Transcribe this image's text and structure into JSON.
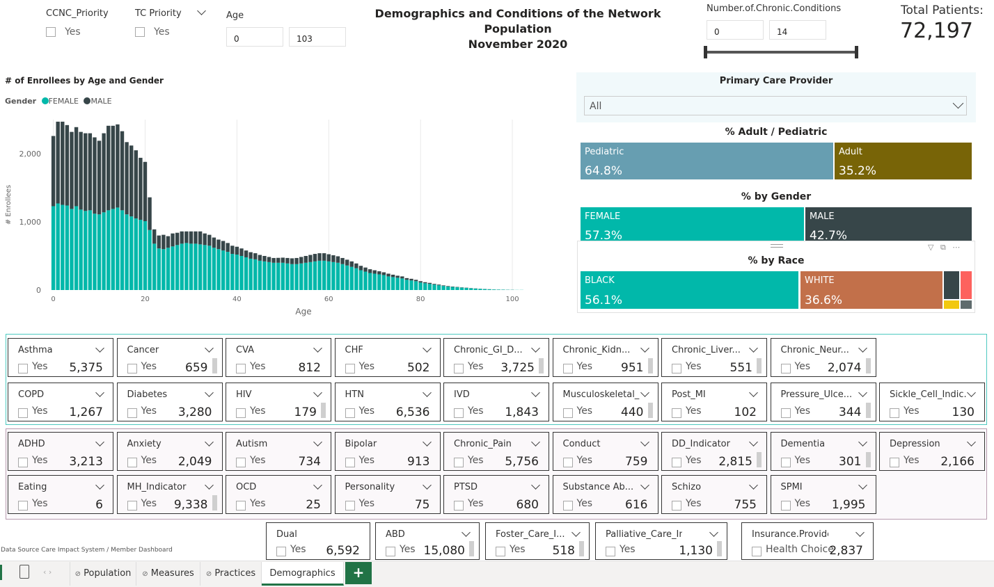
{
  "header": {
    "title_line1": "Demographics and Conditions of the Network Population",
    "title_line2": "November 2020",
    "total_label": "Total Patients:",
    "total_value": "72,197"
  },
  "filters": {
    "ccnc": {
      "label": "CCNC_Priority",
      "opt": "Yes"
    },
    "tc": {
      "label": "TC Priority",
      "opt": "Yes"
    },
    "age": {
      "label": "Age",
      "min": "0",
      "max": "103"
    },
    "chronic": {
      "label": "Number.of.Chronic.Conditions",
      "min": "0",
      "max": "14"
    }
  },
  "chart_data": {
    "type": "bar",
    "stacked": true,
    "title": "# of Enrollees by Age and Gender",
    "legend_title": "Gender",
    "xlabel": "Age",
    "ylabel": "# Enrollees",
    "xlim": [
      -1,
      110
    ],
    "ylim": [
      0,
      2500
    ],
    "xticks": [
      "0",
      "20",
      "40",
      "60",
      "80",
      "100"
    ],
    "yticks": [
      "0",
      "1,000",
      "2,000"
    ],
    "series": [
      {
        "name": "FEMALE",
        "color": "#01B8AA",
        "values": [
          1230,
          1270,
          1250,
          1240,
          1190,
          1230,
          1180,
          1160,
          1170,
          1120,
          1110,
          1140,
          1170,
          1190,
          1210,
          1170,
          1110,
          1080,
          1050,
          1030,
          1010,
          880,
          680,
          610,
          600,
          620,
          640,
          660,
          680,
          690,
          680,
          680,
          670,
          660,
          650,
          620,
          600,
          580,
          560,
          530,
          520,
          500,
          480,
          460,
          450,
          430,
          420,
          410,
          400,
          400,
          400,
          390,
          380,
          380,
          390,
          400,
          410,
          420,
          430,
          430,
          420,
          410,
          400,
          380,
          360,
          340,
          320,
          290,
          270,
          250,
          240,
          230,
          220,
          200,
          190,
          180,
          170,
          150,
          140,
          130,
          110,
          100,
          90,
          80,
          70,
          60,
          50,
          45,
          40,
          35,
          30,
          25,
          20,
          17,
          14,
          10,
          8,
          6,
          5,
          4,
          3,
          2,
          2
        ]
      },
      {
        "name": "MALE",
        "color": "#374649",
        "values": [
          1030,
          1200,
          1220,
          1180,
          1130,
          1160,
          1140,
          1140,
          1130,
          1120,
          1080,
          1160,
          1240,
          1220,
          1220,
          1160,
          1060,
          1040,
          1000,
          910,
          870,
          480,
          210,
          190,
          210,
          170,
          190,
          180,
          180,
          170,
          180,
          180,
          190,
          170,
          160,
          150,
          140,
          140,
          130,
          120,
          115,
          110,
          100,
          95,
          90,
          85,
          80,
          75,
          70,
          72,
          75,
          80,
          85,
          90,
          95,
          100,
          105,
          110,
          110,
          110,
          105,
          100,
          95,
          90,
          85,
          80,
          70,
          65,
          60,
          55,
          50,
          45,
          40,
          40,
          35,
          30,
          30,
          25,
          25,
          20,
          20,
          15,
          15,
          10,
          10,
          8,
          8,
          6,
          5,
          4,
          4,
          3,
          3,
          2,
          2,
          2,
          1,
          1,
          1,
          1,
          1,
          0,
          0
        ]
      }
    ]
  },
  "pcp": {
    "label": "Primary Care Provider",
    "value": "All"
  },
  "adult_ped": {
    "title": "% Adult / Pediatric",
    "segs": [
      {
        "name": "Pediatric",
        "value": "64.8%",
        "color": "#679EB1"
      },
      {
        "name": "Adult",
        "value": "35.2%",
        "color": "#786407"
      }
    ]
  },
  "gender": {
    "title": "% by Gender",
    "segs": [
      {
        "name": "FEMALE",
        "value": "57.3%",
        "color": "#01B8AA"
      },
      {
        "name": "MALE",
        "value": "42.7%",
        "color": "#374649"
      }
    ]
  },
  "race": {
    "title": "% by Race",
    "segs": [
      {
        "name": "BLACK",
        "value": "56.1%",
        "color": "#01B8AA"
      },
      {
        "name": "WHITE",
        "value": "36.6%",
        "color": "#C2704A"
      }
    ]
  },
  "physical": [
    {
      "name": "Asthma",
      "value": "5,375"
    },
    {
      "name": "Cancer",
      "value": "659"
    },
    {
      "name": "CVA",
      "value": "812"
    },
    {
      "name": "CHF",
      "value": "502"
    },
    {
      "name": "Chronic_GI_D...",
      "value": "3,725"
    },
    {
      "name": "Chronic_Kidn...",
      "value": "951"
    },
    {
      "name": "Chronic_Liver...",
      "value": "551"
    },
    {
      "name": "Chronic_Neur...",
      "value": "2,074"
    },
    {
      "name": "COPD",
      "value": "1,267"
    },
    {
      "name": "Diabetes",
      "value": "3,280"
    },
    {
      "name": "HIV",
      "value": "179"
    },
    {
      "name": "HTN",
      "value": "6,536"
    },
    {
      "name": "IVD",
      "value": "1,843"
    },
    {
      "name": "Musculoskeletal_...",
      "value": "440"
    },
    {
      "name": "Post_MI",
      "value": "102"
    },
    {
      "name": "Pressure_Ulce...",
      "value": "344"
    },
    {
      "name": "Sickle_Cell_Indic...",
      "value": "130"
    }
  ],
  "behavioral": [
    {
      "name": "ADHD",
      "value": "3,213"
    },
    {
      "name": "Anxiety",
      "value": "2,049"
    },
    {
      "name": "Autism",
      "value": "734"
    },
    {
      "name": "Bipolar",
      "value": "913"
    },
    {
      "name": "Chronic_Pain",
      "value": "5,756"
    },
    {
      "name": "Conduct",
      "value": "759"
    },
    {
      "name": "DD_Indicator",
      "value": "2,815"
    },
    {
      "name": "Dementia",
      "value": "301"
    },
    {
      "name": "Depression",
      "value": "2,166"
    },
    {
      "name": "Eating",
      "value": "6"
    },
    {
      "name": "MH_Indicator",
      "value": "9,338"
    },
    {
      "name": "OCD",
      "value": "25"
    },
    {
      "name": "Personality",
      "value": "75"
    },
    {
      "name": "PTSD",
      "value": "680"
    },
    {
      "name": "Substance Ab...",
      "value": "616"
    },
    {
      "name": "Schizo",
      "value": "755"
    },
    {
      "name": "SPMI",
      "value": "1,995"
    }
  ],
  "extra": [
    {
      "name": "Dual",
      "value": "6,592",
      "opt": "Yes"
    },
    {
      "name": "ABD",
      "value": "15,080",
      "opt": "Yes"
    },
    {
      "name": "Foster_Care_I...",
      "value": "518",
      "opt": "Yes"
    },
    {
      "name": "Palliative_Care_Indic...",
      "value": "1,130",
      "opt": "Yes"
    },
    {
      "name": "Insurance.Provider",
      "value": "2,837",
      "opt": "Health Choice"
    }
  ],
  "yes_label": "Yes",
  "footer": "Data Source Care Impact System / Member Dashboard",
  "tabs": {
    "population": "Population",
    "measures": "Measures",
    "practices": "Practices",
    "demographics": "Demographics",
    "add": "+"
  }
}
